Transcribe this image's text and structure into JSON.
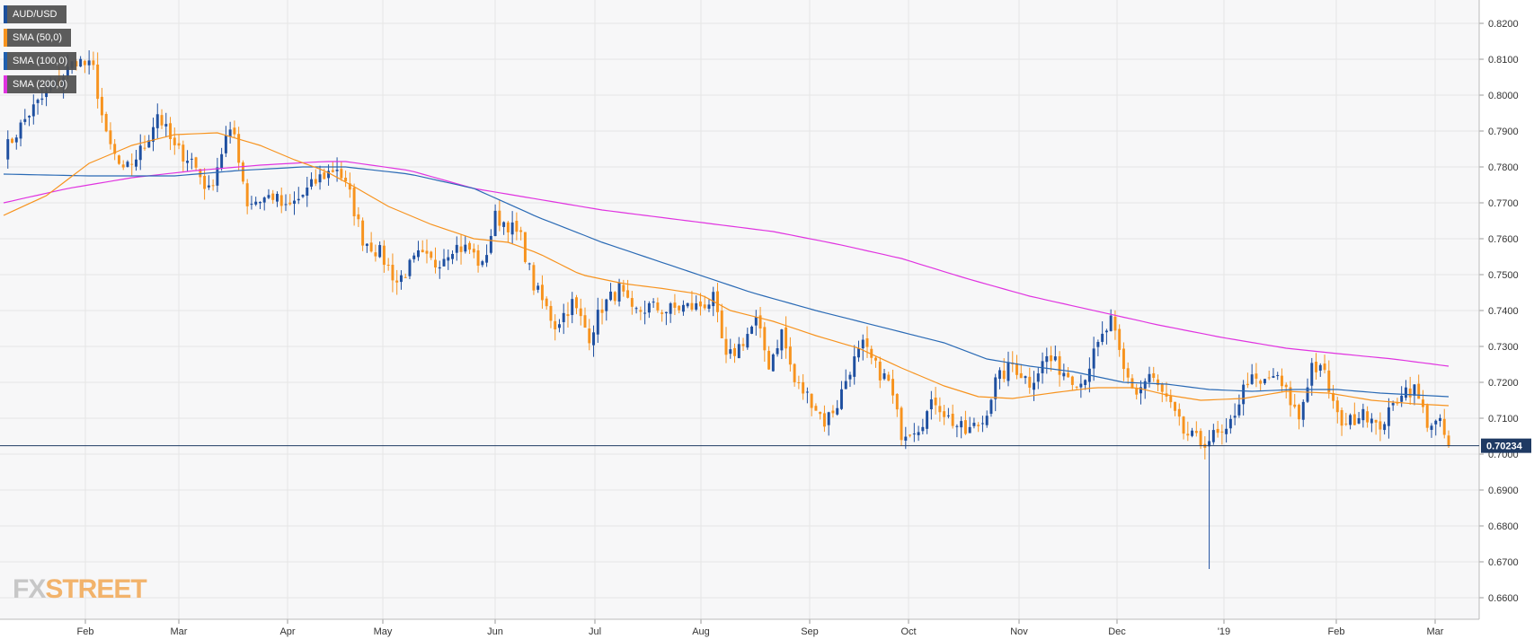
{
  "legend": [
    {
      "label": "AUD/USD",
      "color": "#1c4f9c"
    },
    {
      "label": "SMA (50,0)",
      "color": "#f7931e"
    },
    {
      "label": "SMA (100,0)",
      "color": "#1f5fae"
    },
    {
      "label": "SMA (200,0)",
      "color": "#e033e0"
    }
  ],
  "watermark": {
    "left": "FX",
    "right": "STREET"
  },
  "colors": {
    "bull": "#1e4fa0",
    "bear": "#f7931e",
    "sma50": "#f7931e",
    "sma100": "#2a6ab5",
    "sma200": "#e033e0",
    "grid": "#e6e6e6",
    "last_price_line": "#1f3a63",
    "plot_bg": "#f7f7f8"
  },
  "chart_data": {
    "type": "candlestick",
    "symbol": "AUD/USD",
    "timeframe": "daily",
    "y_range": [
      0.654,
      0.8265
    ],
    "y_ticks": [
      "0.6600",
      "0.6700",
      "0.6800",
      "0.6900",
      "0.7000",
      "0.7100",
      "0.7200",
      "0.7300",
      "0.7400",
      "0.7500",
      "0.7600",
      "0.7700",
      "0.7800",
      "0.7900",
      "0.8000",
      "0.8100",
      "0.8200"
    ],
    "x_ticks": [
      "Feb",
      "Mar",
      "Apr",
      "May",
      "Jun",
      "Jul",
      "Aug",
      "Sep",
      "Oct",
      "Nov",
      "Dec",
      "'19",
      "Feb",
      "Mar"
    ],
    "last_price": "0.70234",
    "close_path": [
      [
        0,
        0.784
      ],
      [
        6,
        0.795
      ],
      [
        13,
        0.804
      ],
      [
        17,
        0.81
      ],
      [
        21,
        0.807
      ],
      [
        24,
        0.788
      ],
      [
        28,
        0.778
      ],
      [
        33,
        0.786
      ],
      [
        36,
        0.795
      ],
      [
        40,
        0.785
      ],
      [
        44,
        0.782
      ],
      [
        48,
        0.773
      ],
      [
        52,
        0.788
      ],
      [
        54,
        0.789
      ],
      [
        57,
        0.77
      ],
      [
        63,
        0.772
      ],
      [
        66,
        0.768
      ],
      [
        69,
        0.771
      ],
      [
        74,
        0.777
      ],
      [
        78,
        0.78
      ],
      [
        81,
        0.772
      ],
      [
        84,
        0.76
      ],
      [
        88,
        0.756
      ],
      [
        92,
        0.748
      ],
      [
        97,
        0.755
      ],
      [
        101,
        0.753
      ],
      [
        105,
        0.758
      ],
      [
        109,
        0.757
      ],
      [
        112,
        0.752
      ],
      [
        115,
        0.766
      ],
      [
        118,
        0.764
      ],
      [
        121,
        0.76
      ],
      [
        124,
        0.747
      ],
      [
        129,
        0.736
      ],
      [
        133,
        0.742
      ],
      [
        137,
        0.733
      ],
      [
        140,
        0.741
      ],
      [
        144,
        0.746
      ],
      [
        147,
        0.739
      ],
      [
        151,
        0.741
      ],
      [
        155,
        0.74
      ],
      [
        159,
        0.741
      ],
      [
        162,
        0.741
      ],
      [
        166,
        0.743
      ],
      [
        169,
        0.726
      ],
      [
        172,
        0.73
      ],
      [
        176,
        0.737
      ],
      [
        179,
        0.725
      ],
      [
        182,
        0.734
      ],
      [
        185,
        0.72
      ],
      [
        189,
        0.715
      ],
      [
        192,
        0.709
      ],
      [
        195,
        0.714
      ],
      [
        198,
        0.724
      ],
      [
        201,
        0.73
      ],
      [
        204,
        0.724
      ],
      [
        207,
        0.72
      ],
      [
        210,
        0.706
      ],
      [
        214,
        0.708
      ],
      [
        218,
        0.715
      ],
      [
        221,
        0.71
      ],
      [
        225,
        0.706
      ],
      [
        229,
        0.709
      ],
      [
        232,
        0.72
      ],
      [
        236,
        0.725
      ],
      [
        240,
        0.72
      ],
      [
        244,
        0.727
      ],
      [
        248,
        0.723
      ],
      [
        252,
        0.72
      ],
      [
        256,
        0.73
      ],
      [
        259,
        0.737
      ],
      [
        262,
        0.723
      ],
      [
        265,
        0.717
      ],
      [
        268,
        0.722
      ],
      [
        272,
        0.715
      ],
      [
        276,
        0.706
      ],
      [
        280,
        0.703
      ],
      [
        283,
        0.705
      ],
      [
        286,
        0.705
      ],
      [
        288,
        0.712
      ],
      [
        291,
        0.721
      ],
      [
        294,
        0.719
      ],
      [
        297,
        0.722
      ],
      [
        300,
        0.717
      ],
      [
        303,
        0.71
      ],
      [
        306,
        0.725
      ],
      [
        309,
        0.722
      ],
      [
        312,
        0.71
      ],
      [
        315,
        0.709
      ],
      [
        318,
        0.713
      ],
      [
        321,
        0.707
      ],
      [
        324,
        0.711
      ],
      [
        327,
        0.718
      ],
      [
        330,
        0.718
      ],
      [
        333,
        0.709
      ],
      [
        336,
        0.708
      ],
      [
        338,
        0.7023
      ]
    ],
    "sma50": [
      [
        0,
        0.7665
      ],
      [
        10,
        0.772
      ],
      [
        20,
        0.781
      ],
      [
        30,
        0.786
      ],
      [
        40,
        0.789
      ],
      [
        50,
        0.7895
      ],
      [
        60,
        0.786
      ],
      [
        68,
        0.782
      ],
      [
        75,
        0.779
      ],
      [
        82,
        0.7745
      ],
      [
        90,
        0.769
      ],
      [
        100,
        0.764
      ],
      [
        110,
        0.76
      ],
      [
        118,
        0.759
      ],
      [
        125,
        0.756
      ],
      [
        135,
        0.75
      ],
      [
        145,
        0.7475
      ],
      [
        155,
        0.746
      ],
      [
        163,
        0.7445
      ],
      [
        170,
        0.74
      ],
      [
        180,
        0.737
      ],
      [
        190,
        0.733
      ],
      [
        200,
        0.7295
      ],
      [
        210,
        0.724
      ],
      [
        220,
        0.719
      ],
      [
        228,
        0.716
      ],
      [
        236,
        0.7155
      ],
      [
        245,
        0.717
      ],
      [
        255,
        0.7185
      ],
      [
        265,
        0.7185
      ],
      [
        272,
        0.7165
      ],
      [
        280,
        0.715
      ],
      [
        290,
        0.7155
      ],
      [
        300,
        0.7175
      ],
      [
        310,
        0.717
      ],
      [
        320,
        0.715
      ],
      [
        330,
        0.714
      ],
      [
        338,
        0.7135
      ]
    ],
    "sma100": [
      [
        0,
        0.778
      ],
      [
        20,
        0.7775
      ],
      [
        40,
        0.7775
      ],
      [
        55,
        0.779
      ],
      [
        70,
        0.78
      ],
      [
        80,
        0.78
      ],
      [
        95,
        0.778
      ],
      [
        110,
        0.774
      ],
      [
        125,
        0.766
      ],
      [
        140,
        0.759
      ],
      [
        160,
        0.751
      ],
      [
        175,
        0.745
      ],
      [
        190,
        0.74
      ],
      [
        205,
        0.7355
      ],
      [
        220,
        0.731
      ],
      [
        230,
        0.7265
      ],
      [
        240,
        0.7245
      ],
      [
        250,
        0.723
      ],
      [
        262,
        0.72
      ],
      [
        272,
        0.7195
      ],
      [
        282,
        0.718
      ],
      [
        292,
        0.7175
      ],
      [
        302,
        0.718
      ],
      [
        312,
        0.718
      ],
      [
        322,
        0.717
      ],
      [
        330,
        0.7165
      ],
      [
        338,
        0.716
      ]
    ],
    "sma200": [
      [
        0,
        0.77
      ],
      [
        15,
        0.774
      ],
      [
        30,
        0.777
      ],
      [
        45,
        0.779
      ],
      [
        60,
        0.7805
      ],
      [
        75,
        0.7815
      ],
      [
        80,
        0.7815
      ],
      [
        95,
        0.779
      ],
      [
        110,
        0.774
      ],
      [
        125,
        0.771
      ],
      [
        140,
        0.768
      ],
      [
        160,
        0.765
      ],
      [
        180,
        0.762
      ],
      [
        195,
        0.7585
      ],
      [
        210,
        0.7545
      ],
      [
        225,
        0.749
      ],
      [
        240,
        0.744
      ],
      [
        255,
        0.74
      ],
      [
        270,
        0.736
      ],
      [
        285,
        0.7325
      ],
      [
        300,
        0.7295
      ],
      [
        312,
        0.728
      ],
      [
        325,
        0.7265
      ],
      [
        338,
        0.7245
      ]
    ],
    "special_wicks": [
      {
        "i": 282,
        "low": 0.668
      }
    ]
  }
}
